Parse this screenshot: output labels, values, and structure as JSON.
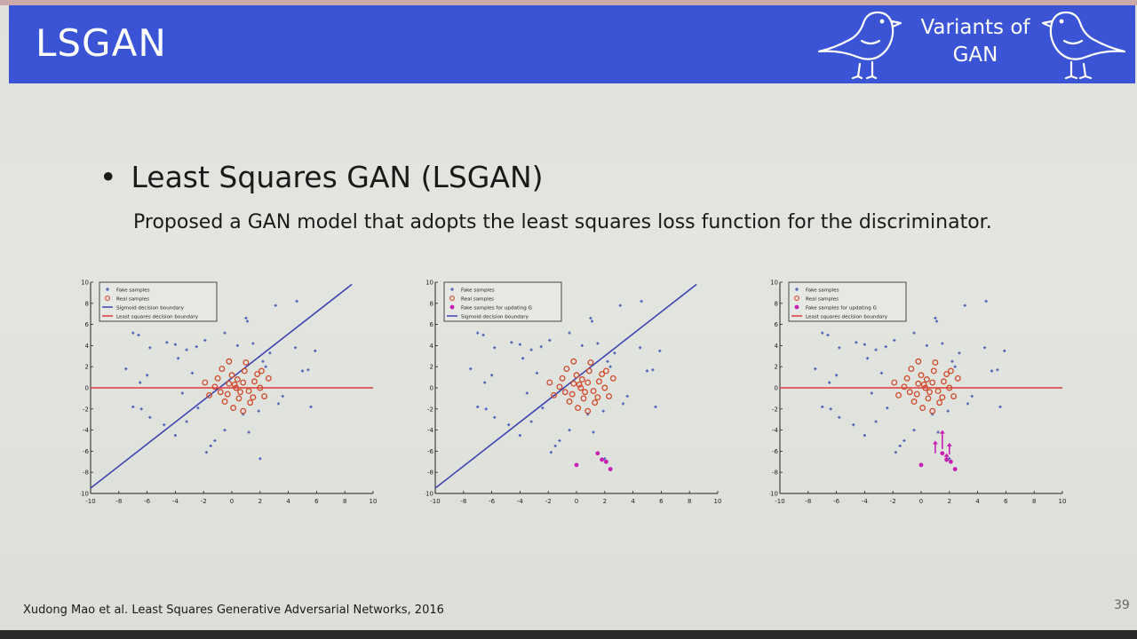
{
  "slide": {
    "title": "LSGAN",
    "header_badge": [
      "Variants of",
      "GAN"
    ],
    "bullet": "Least Squares GAN (LSGAN)",
    "subtitle": "Proposed a GAN model that adopts the least squares loss function for the discriminator.",
    "citation": "Xudong Mao et al. Least Squares Generative Adversarial Networks, 2016",
    "page_number": "39",
    "colors": {
      "header": "#3b54d6",
      "fake": "#4a5fb8",
      "real": "#d04a2a",
      "sigmoid": "#3e44b0",
      "lsq": "#e03a3a",
      "updating": "#c51fb4"
    }
  },
  "chart_data": [
    {
      "type": "scatter",
      "xlim": [
        -10,
        10
      ],
      "ylim": [
        -10,
        10
      ],
      "xticks": [
        -10,
        -8,
        -6,
        -4,
        -2,
        0,
        2,
        4,
        6,
        8,
        10
      ],
      "yticks": [
        -10,
        -8,
        -6,
        -4,
        -2,
        0,
        2,
        4,
        6,
        8,
        10
      ],
      "legend": [
        "Fake samples",
        "Real samples",
        "Sigmoid decision boundary",
        "Least squares decision boundary"
      ],
      "legend_position": "top-left",
      "lines": [
        {
          "name": "Sigmoid decision boundary",
          "x": [
            -10,
            8.5
          ],
          "y": [
            -9.5,
            9.8
          ]
        },
        {
          "name": "Least squares decision boundary",
          "x": [
            -10,
            10
          ],
          "y": [
            0,
            0
          ]
        }
      ],
      "fake_samples": [
        [
          -7,
          5.2
        ],
        [
          -6.6,
          5
        ],
        [
          -5.8,
          3.8
        ],
        [
          -7.5,
          1.8
        ],
        [
          -6,
          1.2
        ],
        [
          -6.5,
          0.5
        ],
        [
          -7,
          -1.8
        ],
        [
          -6.4,
          -2
        ],
        [
          -5.8,
          -2.8
        ],
        [
          -4,
          -4.5
        ],
        [
          -3.2,
          -3.2
        ],
        [
          -4.8,
          -3.5
        ],
        [
          -1.5,
          -5.5
        ],
        [
          -1.8,
          -6.1
        ],
        [
          -1.2,
          -5
        ],
        [
          -0.5,
          -4
        ],
        [
          2,
          -6.7
        ],
        [
          1.2,
          -4.2
        ],
        [
          0.8,
          -2.5
        ],
        [
          3.3,
          -1.5
        ],
        [
          3.6,
          -0.8
        ],
        [
          5.6,
          -1.8
        ],
        [
          5.4,
          1.7
        ],
        [
          5,
          1.6
        ],
        [
          5.9,
          3.5
        ],
        [
          4.5,
          3.8
        ],
        [
          3.1,
          7.8
        ],
        [
          4.6,
          8.2
        ],
        [
          1.1,
          6.3
        ],
        [
          1,
          6.6
        ],
        [
          -0.5,
          5.2
        ],
        [
          -1.9,
          4.5
        ],
        [
          -2.5,
          3.9
        ],
        [
          -3.2,
          3.6
        ],
        [
          -4,
          4.1
        ],
        [
          -4.6,
          4.3
        ],
        [
          -3.8,
          2.8
        ],
        [
          -2.8,
          1.4
        ],
        [
          -3.5,
          -0.5
        ],
        [
          -2.4,
          -1.9
        ],
        [
          1.5,
          4.2
        ],
        [
          2.2,
          2.5
        ],
        [
          2.7,
          3.3
        ],
        [
          2.4,
          2
        ],
        [
          0.4,
          4
        ],
        [
          1.9,
          -2.2
        ]
      ],
      "real_samples": [
        [
          0.3,
          0
        ],
        [
          0.8,
          0.5
        ],
        [
          1.2,
          -0.3
        ],
        [
          -0.2,
          0.4
        ],
        [
          -0.8,
          -0.4
        ],
        [
          0.5,
          -1
        ],
        [
          1.6,
          0.6
        ],
        [
          2,
          0
        ],
        [
          -1.2,
          0.1
        ],
        [
          0,
          1.2
        ],
        [
          0.9,
          1.6
        ],
        [
          -0.5,
          -1.3
        ],
        [
          1.3,
          -1.4
        ],
        [
          2.3,
          -0.8
        ],
        [
          -1.6,
          -0.7
        ],
        [
          0.1,
          -1.9
        ],
        [
          1,
          2.4
        ],
        [
          -0.7,
          1.8
        ],
        [
          2.6,
          0.9
        ],
        [
          0.4,
          0.8
        ],
        [
          -0.3,
          -0.6
        ],
        [
          1.8,
          1.3
        ],
        [
          0.6,
          -0.4
        ],
        [
          -1,
          0.9
        ],
        [
          1.5,
          -0.9
        ],
        [
          2.1,
          1.6
        ],
        [
          -0.2,
          2.5
        ],
        [
          0.8,
          -2.2
        ],
        [
          -1.9,
          0.5
        ],
        [
          0.2,
          0.3
        ]
      ],
      "updating_samples": []
    },
    {
      "type": "scatter",
      "xlim": [
        -10,
        10
      ],
      "ylim": [
        -10,
        10
      ],
      "xticks": [
        -10,
        -8,
        -6,
        -4,
        -2,
        0,
        2,
        4,
        6,
        8,
        10
      ],
      "yticks": [
        -10,
        -8,
        -6,
        -4,
        -2,
        0,
        2,
        4,
        6,
        8,
        10
      ],
      "legend": [
        "Fake samples",
        "Real samples",
        "Fake samples for updating G",
        "Sigmoid decision boundary"
      ],
      "legend_position": "top-left",
      "lines": [
        {
          "name": "Sigmoid decision boundary",
          "x": [
            -10,
            8.5
          ],
          "y": [
            -9.5,
            9.8
          ]
        }
      ],
      "fake_samples": [
        [
          -7,
          5.2
        ],
        [
          -6.6,
          5
        ],
        [
          -5.8,
          3.8
        ],
        [
          -7.5,
          1.8
        ],
        [
          -6,
          1.2
        ],
        [
          -6.5,
          0.5
        ],
        [
          -7,
          -1.8
        ],
        [
          -6.4,
          -2
        ],
        [
          -5.8,
          -2.8
        ],
        [
          -4,
          -4.5
        ],
        [
          -3.2,
          -3.2
        ],
        [
          -4.8,
          -3.5
        ],
        [
          -1.5,
          -5.5
        ],
        [
          -1.8,
          -6.1
        ],
        [
          -1.2,
          -5
        ],
        [
          -0.5,
          -4
        ],
        [
          2,
          -6.7
        ],
        [
          1.2,
          -4.2
        ],
        [
          0.8,
          -2.5
        ],
        [
          3.3,
          -1.5
        ],
        [
          3.6,
          -0.8
        ],
        [
          5.6,
          -1.8
        ],
        [
          5.4,
          1.7
        ],
        [
          5,
          1.6
        ],
        [
          5.9,
          3.5
        ],
        [
          4.5,
          3.8
        ],
        [
          3.1,
          7.8
        ],
        [
          4.6,
          8.2
        ],
        [
          1.1,
          6.3
        ],
        [
          1,
          6.6
        ],
        [
          -0.5,
          5.2
        ],
        [
          -1.9,
          4.5
        ],
        [
          -2.5,
          3.9
        ],
        [
          -3.2,
          3.6
        ],
        [
          -4,
          4.1
        ],
        [
          -4.6,
          4.3
        ],
        [
          -3.8,
          2.8
        ],
        [
          -2.8,
          1.4
        ],
        [
          -3.5,
          -0.5
        ],
        [
          -2.4,
          -1.9
        ],
        [
          1.5,
          4.2
        ],
        [
          2.2,
          2.5
        ],
        [
          2.7,
          3.3
        ],
        [
          2.4,
          2
        ],
        [
          0.4,
          4
        ],
        [
          1.9,
          -2.2
        ]
      ],
      "real_samples": [
        [
          0.3,
          0
        ],
        [
          0.8,
          0.5
        ],
        [
          1.2,
          -0.3
        ],
        [
          -0.2,
          0.4
        ],
        [
          -0.8,
          -0.4
        ],
        [
          0.5,
          -1
        ],
        [
          1.6,
          0.6
        ],
        [
          2,
          0
        ],
        [
          -1.2,
          0.1
        ],
        [
          0,
          1.2
        ],
        [
          0.9,
          1.6
        ],
        [
          -0.5,
          -1.3
        ],
        [
          1.3,
          -1.4
        ],
        [
          2.3,
          -0.8
        ],
        [
          -1.6,
          -0.7
        ],
        [
          0.1,
          -1.9
        ],
        [
          1,
          2.4
        ],
        [
          -0.7,
          1.8
        ],
        [
          2.6,
          0.9
        ],
        [
          0.4,
          0.8
        ],
        [
          -0.3,
          -0.6
        ],
        [
          1.8,
          1.3
        ],
        [
          0.6,
          -0.4
        ],
        [
          -1,
          0.9
        ],
        [
          1.5,
          -0.9
        ],
        [
          2.1,
          1.6
        ],
        [
          -0.2,
          2.5
        ],
        [
          0.8,
          -2.2
        ],
        [
          -1.9,
          0.5
        ],
        [
          0.2,
          0.3
        ]
      ],
      "updating_samples": [
        [
          0,
          -7.3
        ],
        [
          1.5,
          -6.2
        ],
        [
          1.8,
          -6.8
        ],
        [
          2.1,
          -7
        ],
        [
          2.4,
          -7.7
        ]
      ]
    },
    {
      "type": "scatter",
      "xlim": [
        -10,
        10
      ],
      "ylim": [
        -10,
        10
      ],
      "xticks": [
        -10,
        -8,
        -6,
        -4,
        -2,
        0,
        2,
        4,
        6,
        8,
        10
      ],
      "yticks": [
        -10,
        -8,
        -6,
        -4,
        -2,
        0,
        2,
        4,
        6,
        8,
        10
      ],
      "legend": [
        "Fake samples",
        "Real samples",
        "Fake samples for updating G",
        "Least squares decision boundary"
      ],
      "legend_position": "top-left",
      "lines": [
        {
          "name": "Least squares decision boundary",
          "x": [
            -10,
            10
          ],
          "y": [
            0,
            0
          ]
        }
      ],
      "fake_samples": [
        [
          -7,
          5.2
        ],
        [
          -6.6,
          5
        ],
        [
          -5.8,
          3.8
        ],
        [
          -7.5,
          1.8
        ],
        [
          -6,
          1.2
        ],
        [
          -6.5,
          0.5
        ],
        [
          -7,
          -1.8
        ],
        [
          -6.4,
          -2
        ],
        [
          -5.8,
          -2.8
        ],
        [
          -4,
          -4.5
        ],
        [
          -3.2,
          -3.2
        ],
        [
          -4.8,
          -3.5
        ],
        [
          -1.5,
          -5.5
        ],
        [
          -1.8,
          -6.1
        ],
        [
          -1.2,
          -5
        ],
        [
          -0.5,
          -4
        ],
        [
          2,
          -6.7
        ],
        [
          1.2,
          -4.2
        ],
        [
          0.8,
          -2.5
        ],
        [
          3.3,
          -1.5
        ],
        [
          3.6,
          -0.8
        ],
        [
          5.6,
          -1.8
        ],
        [
          5.4,
          1.7
        ],
        [
          5,
          1.6
        ],
        [
          5.9,
          3.5
        ],
        [
          4.5,
          3.8
        ],
        [
          3.1,
          7.8
        ],
        [
          4.6,
          8.2
        ],
        [
          1.1,
          6.3
        ],
        [
          1,
          6.6
        ],
        [
          -0.5,
          5.2
        ],
        [
          -1.9,
          4.5
        ],
        [
          -2.5,
          3.9
        ],
        [
          -3.2,
          3.6
        ],
        [
          -4,
          4.1
        ],
        [
          -4.6,
          4.3
        ],
        [
          -3.8,
          2.8
        ],
        [
          -2.8,
          1.4
        ],
        [
          -3.5,
          -0.5
        ],
        [
          -2.4,
          -1.9
        ],
        [
          1.5,
          4.2
        ],
        [
          2.2,
          2.5
        ],
        [
          2.7,
          3.3
        ],
        [
          2.4,
          2
        ],
        [
          0.4,
          4
        ],
        [
          1.9,
          -2.2
        ]
      ],
      "real_samples": [
        [
          0.3,
          0
        ],
        [
          0.8,
          0.5
        ],
        [
          1.2,
          -0.3
        ],
        [
          -0.2,
          0.4
        ],
        [
          -0.8,
          -0.4
        ],
        [
          0.5,
          -1
        ],
        [
          1.6,
          0.6
        ],
        [
          2,
          0
        ],
        [
          -1.2,
          0.1
        ],
        [
          0,
          1.2
        ],
        [
          0.9,
          1.6
        ],
        [
          -0.5,
          -1.3
        ],
        [
          1.3,
          -1.4
        ],
        [
          2.3,
          -0.8
        ],
        [
          -1.6,
          -0.7
        ],
        [
          0.1,
          -1.9
        ],
        [
          1,
          2.4
        ],
        [
          -0.7,
          1.8
        ],
        [
          2.6,
          0.9
        ],
        [
          0.4,
          0.8
        ],
        [
          -0.3,
          -0.6
        ],
        [
          1.8,
          1.3
        ],
        [
          0.6,
          -0.4
        ],
        [
          -1,
          0.9
        ],
        [
          1.5,
          -0.9
        ],
        [
          2.1,
          1.6
        ],
        [
          -0.2,
          2.5
        ],
        [
          0.8,
          -2.2
        ],
        [
          -1.9,
          0.5
        ],
        [
          0.2,
          0.3
        ]
      ],
      "updating_samples": [
        [
          0,
          -7.3
        ],
        [
          1.5,
          -6.2
        ],
        [
          1.8,
          -6.8
        ],
        [
          2.1,
          -7
        ],
        [
          2.4,
          -7.7
        ]
      ],
      "arrows": [
        [
          1,
          -6.2,
          1,
          -5
        ],
        [
          1.5,
          -5.8,
          1.5,
          -4
        ],
        [
          2,
          -6.3,
          2,
          -5.2
        ],
        [
          1.8,
          -7,
          1.8,
          -6.2
        ]
      ]
    }
  ]
}
